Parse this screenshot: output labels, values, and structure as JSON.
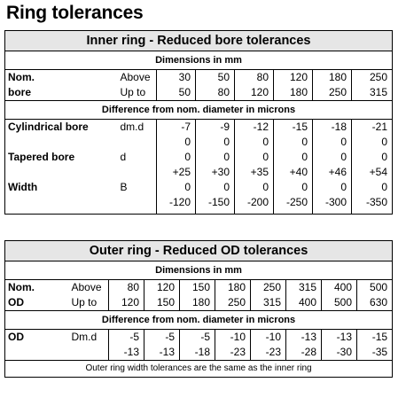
{
  "title": "Ring tolerances",
  "inner": {
    "heading": "Inner ring - Reduced bore tolerances",
    "dims_heading": "Dimensions in mm",
    "nom_label": [
      "Nom.",
      "bore"
    ],
    "range_label": [
      "Above",
      "Up to"
    ],
    "above": [
      "30",
      "50",
      "80",
      "120",
      "180",
      "250"
    ],
    "upto": [
      "50",
      "80",
      "120",
      "180",
      "250",
      "315"
    ],
    "diff_heading": "Difference from nom. diameter in microns",
    "rows": [
      {
        "label": "Cylindrical bore",
        "symbol": "dm.d",
        "lines": [
          [
            "-7",
            "-9",
            "-12",
            "-15",
            "-18",
            "-21"
          ],
          [
            "0",
            "0",
            "0",
            "0",
            "0",
            "0"
          ]
        ]
      },
      {
        "label": "Tapered bore",
        "symbol": "d",
        "lines": [
          [
            "0",
            "0",
            "0",
            "0",
            "0",
            "0"
          ],
          [
            "+25",
            "+30",
            "+35",
            "+40",
            "+46",
            "+54"
          ]
        ]
      },
      {
        "label": "Width",
        "symbol": "B",
        "lines": [
          [
            "0",
            "0",
            "0",
            "0",
            "0",
            "0"
          ],
          [
            "-120",
            "-150",
            "-200",
            "-250",
            "-300",
            "-350"
          ]
        ]
      }
    ]
  },
  "outer": {
    "heading": "Outer ring - Reduced OD tolerances",
    "dims_heading": "Dimensions in mm",
    "nom_label": [
      "Nom.",
      "OD"
    ],
    "range_label": [
      "Above",
      "Up to"
    ],
    "above": [
      "80",
      "120",
      "150",
      "180",
      "250",
      "315",
      "400",
      "500"
    ],
    "upto": [
      "120",
      "150",
      "180",
      "250",
      "315",
      "400",
      "500",
      "630"
    ],
    "diff_heading": "Difference from nom. diameter in microns",
    "rows": [
      {
        "label": "OD",
        "symbol": "Dm.d",
        "lines": [
          [
            "-5",
            "-5",
            "-5",
            "-10",
            "-10",
            "-13",
            "-13",
            "-15"
          ],
          [
            "-13",
            "-13",
            "-18",
            "-23",
            "-23",
            "-28",
            "-30",
            "-35"
          ]
        ]
      }
    ],
    "note": "Outer ring width tolerances are the same as the inner ring"
  }
}
